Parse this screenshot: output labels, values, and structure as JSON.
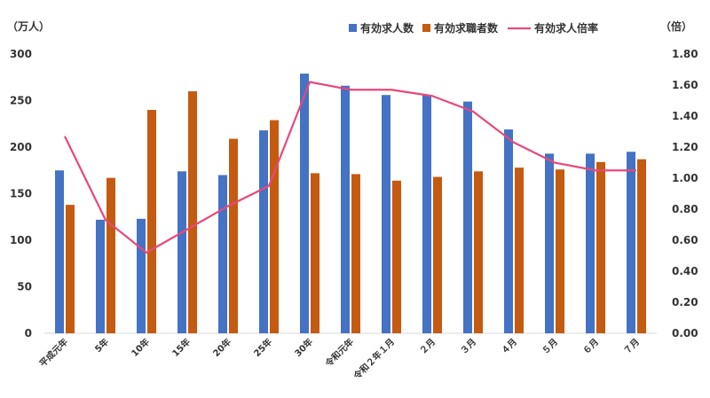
{
  "chart_data": {
    "type": "bar",
    "y_left_unit": "（万人）",
    "y_right_unit": "（倍）",
    "categories": [
      "平成元年",
      "5年",
      "10年",
      "15年",
      "20年",
      "25年",
      "30年",
      "令和元年",
      "令和２年１月",
      "２月",
      "３月",
      "４月",
      "５月",
      "６月",
      "７月"
    ],
    "series": [
      {
        "name": "有効求人数",
        "type": "bar",
        "axis": "left",
        "color": "#4472C4",
        "values": [
          175,
          122,
          123,
          174,
          170,
          218,
          279,
          266,
          256,
          256,
          249,
          219,
          193,
          193,
          195
        ]
      },
      {
        "name": "有効求職者数",
        "type": "bar",
        "axis": "left",
        "color": "#C55A11",
        "values": [
          138,
          167,
          240,
          260,
          209,
          229,
          172,
          171,
          164,
          168,
          174,
          178,
          176,
          184,
          187
        ]
      },
      {
        "name": "有効求人倍率",
        "type": "line",
        "axis": "right",
        "color": "#E8487A",
        "values": [
          1.27,
          0.73,
          0.52,
          0.67,
          0.82,
          0.95,
          1.62,
          1.57,
          1.57,
          1.53,
          1.43,
          1.23,
          1.1,
          1.05,
          1.05
        ]
      }
    ],
    "y_left_ticks": [
      "0",
      "50",
      "100",
      "150",
      "200",
      "250",
      "300"
    ],
    "y_right_ticks": [
      "0.00",
      "0.20",
      "0.40",
      "0.60",
      "0.80",
      "1.00",
      "1.20",
      "1.40",
      "1.60",
      "1.80"
    ],
    "ylim_left": [
      0,
      300
    ],
    "ylim_right": [
      0,
      1.8
    ],
    "legend_position": "top-right",
    "grid": false
  }
}
